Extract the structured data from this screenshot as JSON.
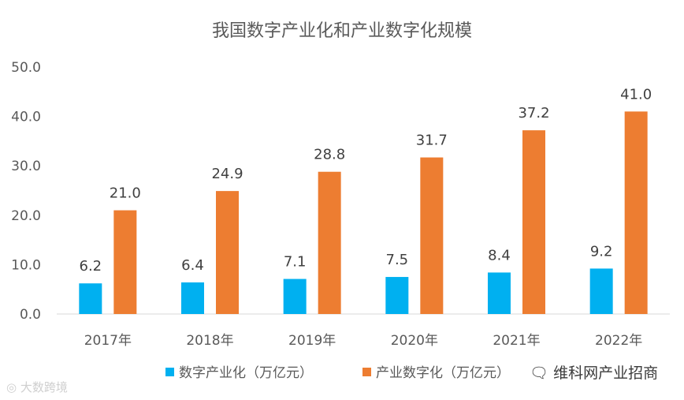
{
  "chart_data": {
    "type": "bar",
    "title": "我国数字产业化和产业数字化规模",
    "xlabel": "",
    "ylabel": "",
    "categories": [
      "2017年",
      "2018年",
      "2019年",
      "2020年",
      "2021年",
      "2022年"
    ],
    "series": [
      {
        "name": "数字产业化（万亿元）",
        "color": "#00b0f0",
        "values": [
          6.2,
          6.4,
          7.1,
          7.5,
          8.4,
          9.2
        ]
      },
      {
        "name": "产业数字化（万亿元）",
        "color": "#ed7d31",
        "values": [
          21.0,
          24.9,
          28.8,
          31.7,
          37.2,
          41.0
        ]
      }
    ],
    "ylim": [
      0,
      50
    ],
    "yticks": [
      "0.0",
      "10.0",
      "20.0",
      "30.0",
      "40.0",
      "50.0"
    ],
    "grid": false,
    "legend": "bottom",
    "data_labels": true
  },
  "watermarks": {
    "left": "大数跨境",
    "right": "维科网产业招商"
  }
}
